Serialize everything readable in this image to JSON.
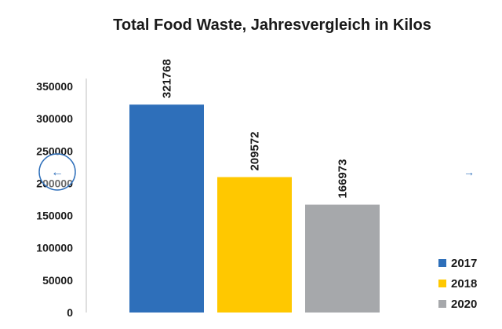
{
  "chart_data": {
    "type": "bar",
    "title": "Total Food Waste, Jahresvergleich in Kilos",
    "xlabel": "",
    "ylabel": "",
    "ylim": [
      0,
      350000
    ],
    "yticks": [
      0,
      50000,
      100000,
      150000,
      200000,
      250000,
      300000,
      350000
    ],
    "ytick_labels": [
      "0",
      "50000",
      "100000",
      "150000",
      "200000",
      "250000",
      "300000",
      "350000"
    ],
    "grid": false,
    "legend_position": "bottom-right",
    "series": [
      {
        "name": "2017",
        "value": 321768,
        "color": "#2e6fba"
      },
      {
        "name": "2018",
        "value": 209572,
        "color": "#ffc800"
      },
      {
        "name": "2020",
        "value": 166973,
        "color": "#a6a8ab"
      }
    ]
  },
  "navigation": {
    "prev_icon": "arrow-left-icon",
    "next_icon": "arrow-right-icon",
    "prev_glyph": "←",
    "next_glyph": "→",
    "accent_color": "#2e6fba"
  }
}
